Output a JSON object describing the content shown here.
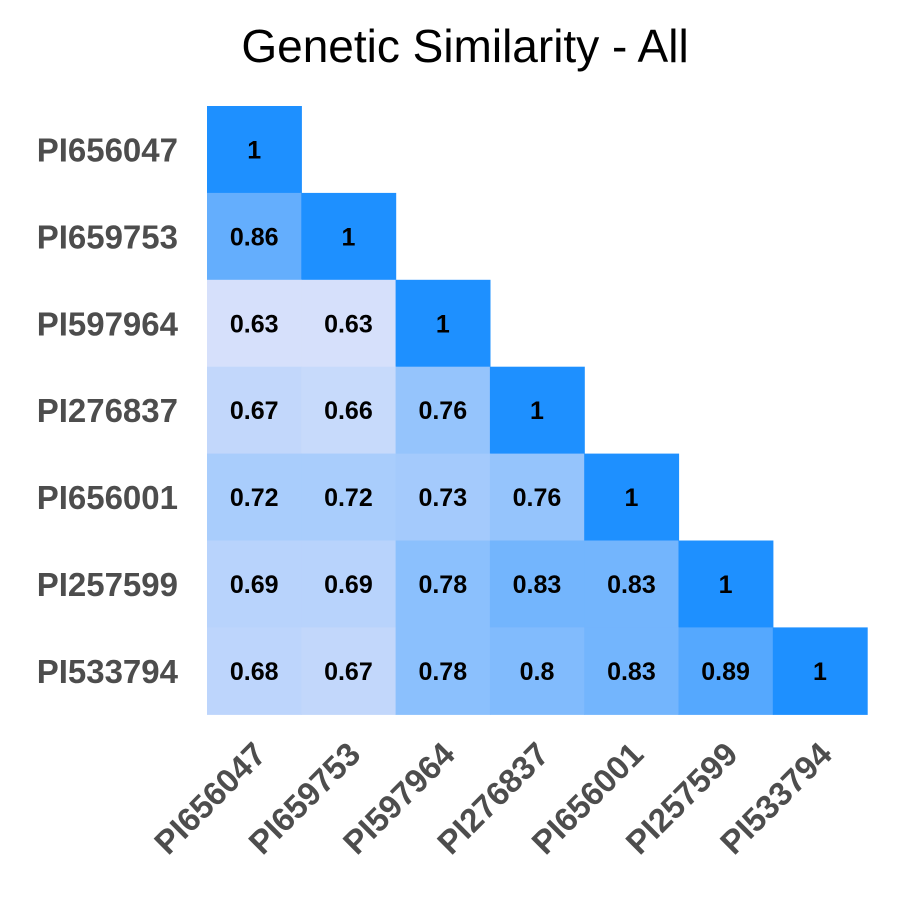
{
  "chart_data": {
    "type": "heatmap",
    "title": "Genetic Similarity - All",
    "xlabel": "",
    "ylabel": "",
    "rows": [
      "PI656047",
      "PI659753",
      "PI597964",
      "PI276837",
      "PI656001",
      "PI257599",
      "PI533794"
    ],
    "columns": [
      "PI656047",
      "PI659753",
      "PI597964",
      "PI276837",
      "PI656001",
      "PI257599",
      "PI533794"
    ],
    "values": [
      [
        1
      ],
      [
        0.86,
        1
      ],
      [
        0.63,
        0.63,
        1
      ],
      [
        0.67,
        0.66,
        0.76,
        1
      ],
      [
        0.72,
        0.72,
        0.73,
        0.76,
        1
      ],
      [
        0.69,
        0.69,
        0.78,
        0.83,
        0.83,
        1
      ],
      [
        0.68,
        0.67,
        0.78,
        0.8,
        0.83,
        0.89,
        1
      ]
    ],
    "color_scale": {
      "low": 0.63,
      "high": 1,
      "low_color": "#d6e0fb",
      "high_color": "#1e90ff"
    },
    "lower_triangle": true,
    "legend": "none",
    "grid": false
  }
}
